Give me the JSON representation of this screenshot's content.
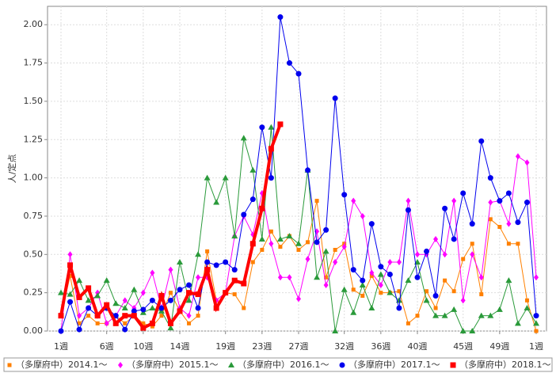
{
  "chart_data": {
    "type": "line",
    "y_label": "人/定点",
    "categories": [
      "1週",
      null,
      null,
      null,
      null,
      "6週",
      null,
      null,
      null,
      "10週",
      null,
      null,
      null,
      "14週",
      null,
      null,
      null,
      null,
      "19週",
      null,
      null,
      null,
      "23週",
      null,
      null,
      null,
      "27週",
      null,
      null,
      null,
      null,
      "32週",
      null,
      null,
      null,
      "36週",
      null,
      null,
      null,
      "40週",
      null,
      null,
      null,
      null,
      "45週",
      null,
      null,
      null,
      "49週",
      null,
      null,
      null,
      "1週"
    ],
    "ylim": [
      0,
      2.12
    ],
    "yticks": [
      {
        "value": 0,
        "label": "0.00"
      },
      {
        "value": 0.25,
        "label": "0.25"
      },
      {
        "value": 0.5,
        "label": "0.50"
      },
      {
        "value": 0.75,
        "label": "0.75"
      },
      {
        "value": 1,
        "label": "1.00"
      },
      {
        "value": 1.25,
        "label": "1.25"
      },
      {
        "value": 1.5,
        "label": "1.50"
      },
      {
        "value": 1.75,
        "label": "1.75"
      },
      {
        "value": 2,
        "label": "2.00"
      }
    ],
    "grid": true,
    "legend": "bottom",
    "series": [
      {
        "name": "（多摩府中）2014.1～",
        "color": "#ff8000",
        "marker": "small-square",
        "line_width": 1,
        "values": [
          0.1,
          0.36,
          0.05,
          0.1,
          0.05,
          0.05,
          0.1,
          0.05,
          0.1,
          0.05,
          0.03,
          0.1,
          0.25,
          0.13,
          0.05,
          0.1,
          0.52,
          0.2,
          0.25,
          0.24,
          0.15,
          0.45,
          0.53,
          0.65,
          0.55,
          0.62,
          0.53,
          0.58,
          0.85,
          0.35,
          0.53,
          0.57,
          0.27,
          0.23,
          0.36,
          0.25,
          0.25,
          0.26,
          0.05,
          0.1,
          0.26,
          0.15,
          0.33,
          0.26,
          0.47,
          0.57,
          0.24,
          0.73,
          0.68,
          0.57,
          0.57,
          0.2,
          0.0
        ]
      },
      {
        "name": "（多摩府中）2015.1～",
        "color": "#ff00ff",
        "marker": "diamond",
        "line_width": 1,
        "values": [
          0.0,
          0.5,
          0.1,
          0.15,
          0.25,
          0.05,
          0.1,
          0.2,
          0.15,
          0.25,
          0.38,
          0.15,
          0.4,
          0.15,
          0.1,
          0.35,
          0.35,
          0.2,
          0.25,
          0.62,
          0.75,
          0.63,
          0.9,
          0.57,
          0.35,
          0.35,
          0.21,
          0.47,
          0.65,
          0.3,
          0.45,
          0.55,
          0.85,
          0.75,
          0.38,
          0.3,
          0.45,
          0.45,
          0.85,
          0.5,
          0.5,
          0.6,
          0.5,
          0.85,
          0.2,
          0.5,
          0.35,
          0.84,
          0.85,
          0.7,
          1.14,
          1.1,
          0.35
        ]
      },
      {
        "name": "（多摩府中）2016.1～",
        "color": "#2a9a3a",
        "marker": "triangle",
        "line_width": 1,
        "values": [
          0.25,
          0.24,
          0.33,
          0.2,
          0.23,
          0.33,
          0.18,
          0.15,
          0.27,
          0.12,
          0.15,
          0.13,
          0.02,
          0.45,
          0.2,
          0.5,
          1.0,
          0.84,
          1.0,
          0.62,
          1.26,
          1.05,
          0.6,
          1.33,
          0.6,
          0.62,
          0.57,
          1.05,
          0.35,
          0.52,
          0.0,
          0.27,
          0.12,
          0.3,
          0.15,
          0.37,
          0.25,
          0.2,
          0.33,
          0.45,
          0.2,
          0.1,
          0.1,
          0.14,
          0.0,
          0.0,
          0.1,
          0.1,
          0.14,
          0.33,
          0.05,
          0.15,
          0.05
        ]
      },
      {
        "name": "（多摩府中）2017.1～",
        "color": "#0000ee",
        "marker": "circle",
        "line_width": 1,
        "values": [
          0.0,
          0.19,
          0.01,
          0.15,
          0.1,
          0.15,
          0.1,
          0.01,
          0.13,
          0.14,
          0.2,
          0.15,
          0.2,
          0.27,
          0.3,
          0.15,
          0.45,
          0.43,
          0.45,
          0.4,
          0.76,
          0.86,
          1.33,
          1.0,
          2.05,
          1.75,
          1.68,
          1.05,
          0.58,
          0.66,
          1.52,
          0.89,
          0.4,
          0.33,
          0.7,
          0.42,
          0.37,
          0.15,
          0.79,
          0.35,
          0.52,
          0.23,
          0.8,
          0.6,
          0.9,
          0.7,
          1.24,
          1.0,
          0.85,
          0.9,
          0.71,
          0.84,
          0.1
        ]
      },
      {
        "name": "（多摩府中）2018.1～",
        "color": "#ff0000",
        "marker": "square",
        "line_width": 4,
        "values": [
          0.1,
          0.43,
          0.22,
          0.28,
          0.1,
          0.17,
          0.05,
          0.1,
          0.1,
          0.02,
          0.05,
          0.23,
          0.05,
          0.13,
          0.25,
          0.24,
          0.4,
          0.15,
          0.25,
          0.33,
          0.31,
          0.57,
          0.8,
          1.19,
          1.35,
          null,
          null,
          null,
          null,
          null,
          null,
          null,
          null,
          null,
          null,
          null,
          null,
          null,
          null,
          null,
          null,
          null,
          null,
          null,
          null,
          null,
          null,
          null,
          null,
          null,
          null,
          null,
          null
        ]
      }
    ]
  }
}
